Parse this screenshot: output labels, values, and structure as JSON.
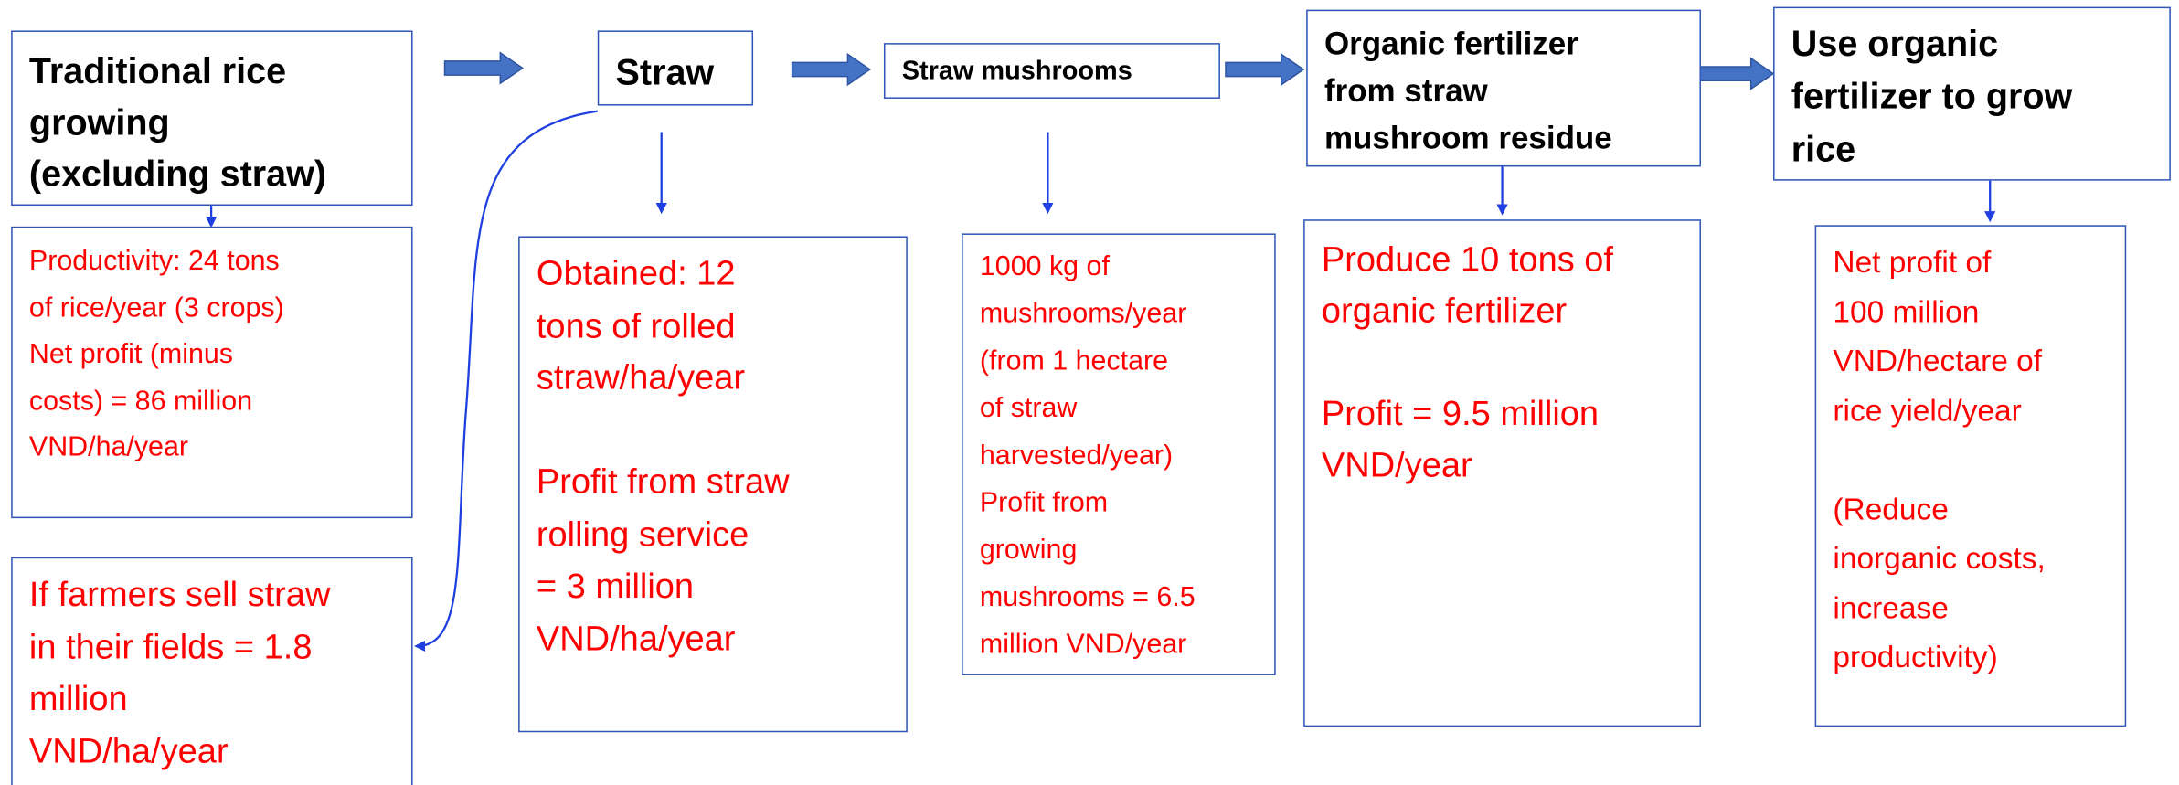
{
  "nodes": [
    {
      "kind": "header",
      "paragraphs": [
        [
          "Traditional rice",
          "growing",
          "(excluding straw)"
        ]
      ]
    },
    {
      "kind": "header",
      "paragraphs": [
        [
          "Straw"
        ]
      ]
    },
    {
      "kind": "header",
      "paragraphs": [
        [
          "Straw mushrooms"
        ]
      ]
    },
    {
      "kind": "header",
      "paragraphs": [
        [
          "Organic fertilizer",
          "from straw",
          "mushroom residue"
        ]
      ]
    },
    {
      "kind": "header",
      "paragraphs": [
        [
          "Use organic",
          "fertilizer to grow",
          "rice"
        ]
      ]
    },
    {
      "kind": "detail",
      "paragraphs": [
        [
          "Productivity: 24 tons",
          "of rice/year (3 crops)",
          "Net profit (minus",
          "costs) = 86 million",
          "VND/ha/year"
        ]
      ]
    },
    {
      "kind": "detail",
      "paragraphs": [
        [
          "If farmers sell straw",
          "in their fields = 1.8",
          "million",
          "VND/ha/year"
        ]
      ]
    },
    {
      "kind": "detail",
      "paragraphs": [
        [
          "Obtained: 12",
          "tons of rolled",
          "straw/ha/year"
        ],
        [
          "Profit from straw",
          "rolling service",
          "= 3 million",
          "VND/ha/year"
        ]
      ]
    },
    {
      "kind": "detail",
      "paragraphs": [
        [
          "1000 kg of",
          "mushrooms/year",
          "(from 1 hectare",
          "of straw",
          "harvested/year)",
          "Profit from",
          "growing",
          "mushrooms = 6.5",
          "million VND/year"
        ]
      ]
    },
    {
      "kind": "detail",
      "paragraphs": [
        [
          "Produce 10 tons of",
          "organic fertilizer"
        ],
        [
          "Profit = 9.5 million",
          "VND/year"
        ]
      ]
    },
    {
      "kind": "detail",
      "paragraphs": [
        [
          "Net profit of",
          "100 million",
          "VND/hectare of",
          "rice yield/year"
        ],
        [
          "(Reduce",
          "inorganic costs,",
          "increase",
          "productivity)"
        ]
      ]
    }
  ]
}
